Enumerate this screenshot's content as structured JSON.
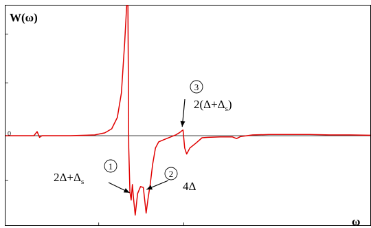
{
  "chart_data": {
    "type": "line",
    "ylabel": "W(ω)",
    "xlabel": "ω",
    "y_tick_label": "0",
    "xlim": [
      0,
      9
    ],
    "ylim": [
      -2.2,
      3.2
    ],
    "grid": false,
    "series": [
      {
        "color": "#e00000",
        "x": [
          0.0,
          0.7,
          0.78,
          0.84,
          0.9,
          1.0,
          1.6,
          2.2,
          2.45,
          2.62,
          2.76,
          2.86,
          2.94,
          2.99,
          3.02,
          3.04,
          3.07,
          3.1,
          3.13,
          3.16,
          3.2,
          3.26,
          3.33,
          3.4,
          3.47,
          3.52,
          3.57,
          3.63,
          3.7,
          3.78,
          3.9,
          4.05,
          4.2,
          4.3,
          4.35,
          4.38,
          4.42,
          4.47,
          4.55,
          4.7,
          4.85,
          5.0,
          5.3,
          5.6,
          5.7,
          5.8,
          6.1,
          6.5,
          7.0,
          7.5,
          8.0,
          8.5,
          9.0
        ],
        "y": [
          0.0,
          0.0,
          0.1,
          -0.04,
          0.0,
          0.0,
          0.0,
          0.02,
          0.07,
          0.17,
          0.45,
          1.05,
          2.3,
          3.6,
          3.6,
          -0.3,
          -1.38,
          -1.58,
          -1.2,
          -1.55,
          -1.95,
          -1.42,
          -1.25,
          -1.27,
          -1.9,
          -1.52,
          -1.2,
          -0.7,
          -0.3,
          -0.15,
          -0.1,
          -0.04,
          0.02,
          0.08,
          0.12,
          0.14,
          -0.3,
          -0.45,
          -0.3,
          -0.18,
          -0.05,
          -0.04,
          -0.03,
          -0.03,
          -0.07,
          -0.02,
          0.02,
          0.03,
          0.03,
          0.03,
          0.02,
          0.02,
          0.01
        ]
      }
    ],
    "annotations": [
      {
        "marker": "①",
        "label": "2Δ+Δ",
        "label_sub": "s",
        "target_x": 3.06,
        "target_y": -1.4
      },
      {
        "marker": "②",
        "label": "4Δ",
        "label_sub": "",
        "target_x": 3.48,
        "target_y": -1.32
      },
      {
        "marker": "③",
        "label": "2(Δ+Δ",
        "label_sub": "s",
        "label_after": ")",
        "target_x": 4.36,
        "target_y": 0.22
      }
    ]
  }
}
